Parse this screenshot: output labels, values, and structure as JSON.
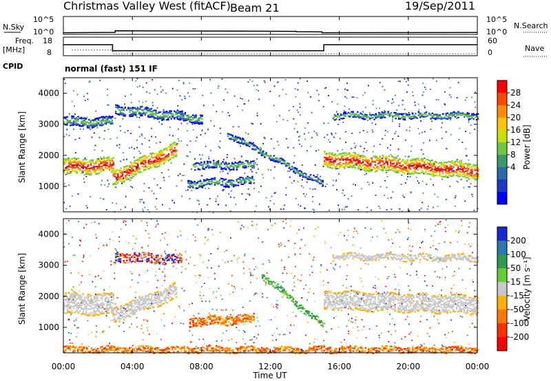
{
  "header": {
    "title": "Christmas Valley West (fitACF)",
    "beam": "Beam 21",
    "date": "19/Sep/2011"
  },
  "nsky_panel": {
    "left_label_line1": "N.Sky",
    "left_label_line2": "",
    "left_ticks": [
      "10^5",
      "10^0"
    ],
    "right_ticks": [
      "10^5",
      "10^0"
    ],
    "right_label": "N.Search"
  },
  "freq_panel": {
    "left_label_line1": "Freq.",
    "left_label_line2": "[MHz]",
    "left_ticks": [
      "18",
      "8"
    ],
    "right_ticks": [
      "60",
      "0"
    ],
    "right_label": "Nave"
  },
  "cpid": {
    "label": "CPID",
    "value": "normal (fast) 151 IF"
  },
  "x_axis": {
    "label": "Time UT",
    "ticks": [
      "00:00",
      "04:00",
      "08:00",
      "12:00",
      "16:00",
      "20:00",
      "00:00"
    ]
  },
  "power_colorbar": {
    "label": "Power [dB]",
    "ticks": [
      "28",
      "24",
      "20",
      "16",
      "12",
      "8",
      "4"
    ],
    "colors": [
      "#ff0000",
      "#ff4a00",
      "#ff8c00",
      "#ffc400",
      "#c6e000",
      "#70c840",
      "#3a9a6a",
      "#2a6aa8",
      "#1a3ac8",
      "#0000ff"
    ]
  },
  "velocity_colorbar": {
    "label": "Velocity [m s⁻¹]",
    "ticks": [
      "200",
      "100",
      "50",
      "15",
      "-15",
      "-50",
      "-100",
      "-200"
    ],
    "colors": [
      "#1a2ad0",
      "#2a7ab0",
      "#2e9a50",
      "#66cc33",
      "#c8c8c8",
      "#ffb000",
      "#ff7800",
      "#ff3000",
      "#ff0000"
    ]
  },
  "chart_data": [
    {
      "type": "line",
      "title": "N.Sky / N.Search",
      "x_unit": "hours UT",
      "xlim": [
        0,
        24
      ],
      "ylim_log10": [
        0,
        5
      ],
      "series": [
        {
          "values_x": [
            0,
            3,
            3,
            13.5,
            13.5,
            15,
            15,
            24
          ],
          "values_log10": [
            0.3,
            0.4,
            0.9,
            0.7,
            0.6,
            0.55,
            0.3,
            0.35
          ]
        }
      ]
    },
    {
      "type": "line",
      "title": "Freq / Nave",
      "x_unit": "hours UT",
      "xlim": [
        0,
        24
      ],
      "ylim": [
        8,
        18
      ],
      "series": [
        {
          "values_x": [
            0,
            2.85,
            2.85,
            15.1,
            15.1,
            24
          ],
          "values": [
            14,
            14,
            10.5,
            10.5,
            14,
            14
          ]
        },
        {
          "style": "dotted",
          "values_x": [
            0.5,
            2.8,
            2.9,
            15.0,
            15.2,
            23.9
          ],
          "values": [
            11,
            11,
            8.7,
            8.7,
            8.7,
            8.7
          ]
        }
      ]
    },
    {
      "type": "heatmap",
      "title": "Power",
      "xlabel": "Time UT",
      "ylabel": "Slant Range [km]",
      "xlim": [
        0,
        24
      ],
      "ylim": [
        180,
        4500
      ],
      "yticks": [
        1000,
        2000,
        3000,
        4000
      ],
      "bands": [
        {
          "x0": 0,
          "x1": 2.85,
          "y_start": 1650,
          "y_end": 1700,
          "width": 500,
          "level": "high"
        },
        {
          "x0": 2.85,
          "x1": 6.5,
          "y_start": 1300,
          "y_end": 2200,
          "width": 500,
          "level": "high"
        },
        {
          "x0": 7.2,
          "x1": 11.0,
          "y_start": 1100,
          "y_end": 1200,
          "width": 250,
          "level": "low"
        },
        {
          "x0": 7.5,
          "x1": 11.0,
          "y_start": 1700,
          "y_end": 1700,
          "width": 250,
          "level": "low"
        },
        {
          "x0": 9.5,
          "x1": 15.0,
          "y_start": 2700,
          "y_end": 1100,
          "width": 180,
          "level": "low"
        },
        {
          "x0": 15.1,
          "x1": 24,
          "y_start": 1900,
          "y_end": 1500,
          "width": 500,
          "level": "high"
        },
        {
          "x0": 0,
          "x1": 2.8,
          "y_start": 3100,
          "y_end": 3100,
          "width": 300,
          "level": "low"
        },
        {
          "x0": 3.0,
          "x1": 8.0,
          "y_start": 3500,
          "y_end": 3200,
          "width": 300,
          "level": "low"
        },
        {
          "x0": 15.6,
          "x1": 24,
          "y_start": 3300,
          "y_end": 3300,
          "width": 200,
          "level": "low"
        }
      ]
    },
    {
      "type": "heatmap",
      "title": "Velocity",
      "xlabel": "Time UT",
      "ylabel": "Slant Range [km]",
      "xlim": [
        0,
        24
      ],
      "ylim": [
        180,
        4500
      ],
      "yticks": [
        1000,
        2000,
        3000,
        4000
      ],
      "bands": [
        {
          "x0": 0,
          "x1": 2.85,
          "y_start": 1800,
          "y_end": 1750,
          "width": 700,
          "level": "ground"
        },
        {
          "x0": 2.85,
          "x1": 6.5,
          "y_start": 1400,
          "y_end": 2200,
          "width": 500,
          "level": "ground"
        },
        {
          "x0": 3.0,
          "x1": 6.8,
          "y_start": 3300,
          "y_end": 3200,
          "width": 300,
          "level": "mixed"
        },
        {
          "x0": 7.3,
          "x1": 11.0,
          "y_start": 1200,
          "y_end": 1300,
          "width": 300,
          "level": "negative"
        },
        {
          "x0": 11.5,
          "x1": 15.0,
          "y_start": 2700,
          "y_end": 1100,
          "width": 200,
          "level": "positive"
        },
        {
          "x0": 15.1,
          "x1": 24,
          "y_start": 1900,
          "y_end": 1750,
          "width": 600,
          "level": "ground"
        },
        {
          "x0": 15.6,
          "x1": 24,
          "y_start": 3300,
          "y_end": 3250,
          "width": 200,
          "level": "ground"
        },
        {
          "x0": 0,
          "x1": 24,
          "y_start": 300,
          "y_end": 300,
          "width": 200,
          "level": "negative"
        }
      ]
    }
  ]
}
